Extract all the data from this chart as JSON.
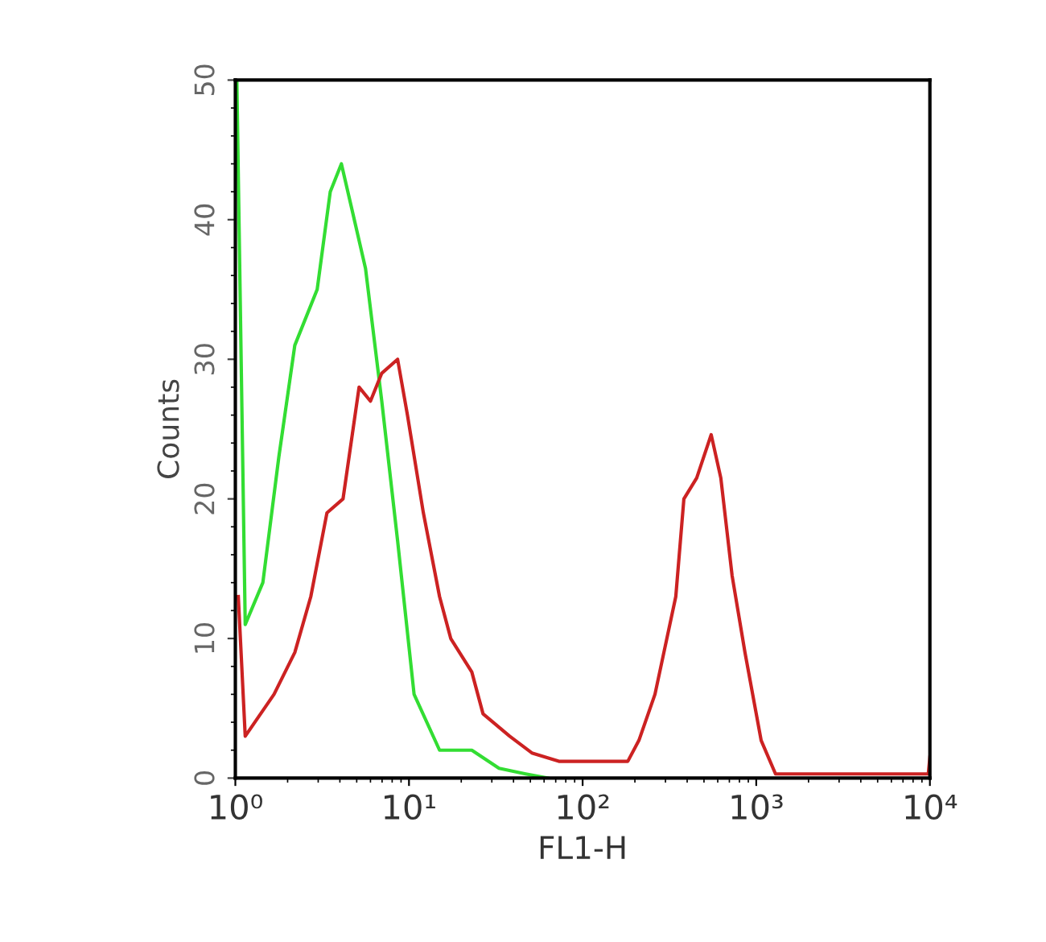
{
  "chart_data": {
    "type": "line",
    "xlabel": "FL1-H",
    "ylabel": "Counts",
    "log": "x",
    "grid": false,
    "xlim": [
      1,
      10000
    ],
    "xticks": [
      {
        "value": 1,
        "label": "10⁰"
      },
      {
        "value": 10,
        "label": "10¹"
      },
      {
        "value": 100,
        "label": "10²"
      },
      {
        "value": 1000,
        "label": "10³"
      },
      {
        "value": 10000,
        "label": "10⁴"
      }
    ],
    "ylim": [
      0,
      50
    ],
    "yticks": [
      0,
      10,
      20,
      30,
      40,
      50
    ],
    "series": [
      {
        "color": "#33dd33",
        "x": [
          1.02,
          1.14,
          1.44,
          1.78,
          2.2,
          2.96,
          3.52,
          4.08,
          4.64,
          5.62,
          6.97,
          8.6,
          10.7,
          15,
          23,
          33,
          47,
          63
        ],
        "values": [
          50,
          11,
          14,
          23,
          31,
          35,
          42,
          44,
          41,
          36.5,
          27,
          17,
          6,
          2,
          2,
          0.7,
          0.3,
          0
        ]
      },
      {
        "color": "#cc2222",
        "x": [
          1.04,
          1.14,
          1.67,
          2.2,
          2.72,
          3.37,
          4.17,
          5.16,
          6.0,
          6.97,
          8.6,
          9.8,
          12.1,
          15,
          17.4,
          23,
          26.7,
          38,
          51,
          73,
          102,
          182,
          211,
          261,
          344,
          383,
          454,
          550,
          625,
          726,
          861,
          1067,
          1291,
          9790,
          10000
        ],
        "values": [
          13,
          3,
          6,
          9,
          13,
          19,
          20,
          28,
          27,
          29,
          30,
          26,
          19,
          13,
          10,
          7.6,
          4.6,
          3,
          1.8,
          1.2,
          1.2,
          1.2,
          2.7,
          6,
          13,
          20,
          21.5,
          24.6,
          21.5,
          14.5,
          9,
          2.7,
          0.3,
          0.3,
          1.5
        ]
      }
    ]
  }
}
